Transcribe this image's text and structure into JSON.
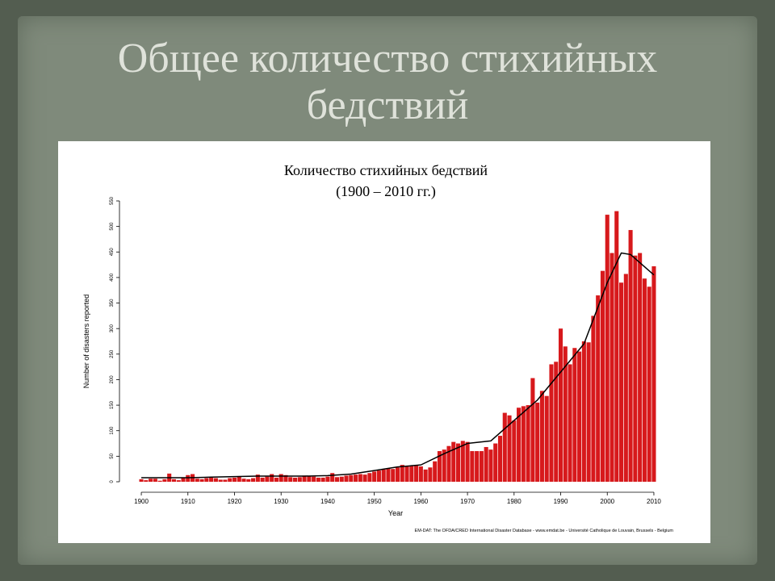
{
  "slide": {
    "title": "Общее количество стихийных бедствий"
  },
  "chart_data": {
    "type": "bar",
    "title": "Количество стихийных бедствий",
    "subtitle": "(1900 – 2010 гг.)",
    "x_label": "Year",
    "y_label": "Number of disasters reported",
    "source": "EM-DAT: The OFDA/CRED International Disaster Database - www.emdat.be - Université Catholique de Louvain, Brussels - Belgium",
    "color": "#d7191c",
    "x": [
      1900,
      1901,
      1902,
      1903,
      1904,
      1905,
      1906,
      1907,
      1908,
      1909,
      1910,
      1911,
      1912,
      1913,
      1914,
      1915,
      1916,
      1917,
      1918,
      1919,
      1920,
      1921,
      1922,
      1923,
      1924,
      1925,
      1926,
      1927,
      1928,
      1929,
      1930,
      1931,
      1932,
      1933,
      1934,
      1935,
      1936,
      1937,
      1938,
      1939,
      1940,
      1941,
      1942,
      1943,
      1944,
      1945,
      1946,
      1947,
      1948,
      1949,
      1950,
      1951,
      1952,
      1953,
      1954,
      1955,
      1956,
      1957,
      1958,
      1959,
      1960,
      1961,
      1962,
      1963,
      1964,
      1965,
      1966,
      1967,
      1968,
      1969,
      1970,
      1971,
      1972,
      1973,
      1974,
      1975,
      1976,
      1977,
      1978,
      1979,
      1980,
      1981,
      1982,
      1983,
      1984,
      1985,
      1986,
      1987,
      1988,
      1989,
      1990,
      1991,
      1992,
      1993,
      1994,
      1995,
      1996,
      1997,
      1998,
      1999,
      2000,
      2001,
      2002,
      2003,
      2004,
      2005,
      2006,
      2007,
      2008,
      2009,
      2010
    ],
    "values": [
      5,
      3,
      6,
      6,
      2,
      5,
      16,
      5,
      3,
      8,
      13,
      15,
      6,
      5,
      7,
      8,
      7,
      4,
      4,
      7,
      8,
      10,
      6,
      5,
      7,
      14,
      8,
      10,
      15,
      8,
      15,
      13,
      9,
      8,
      9,
      12,
      11,
      10,
      8,
      8,
      10,
      17,
      9,
      10,
      12,
      13,
      14,
      15,
      14,
      17,
      20,
      22,
      24,
      26,
      25,
      28,
      33,
      30,
      31,
      32,
      30,
      24,
      28,
      40,
      60,
      63,
      70,
      78,
      75,
      80,
      78,
      60,
      60,
      60,
      68,
      63,
      75,
      90,
      135,
      130,
      120,
      145,
      148,
      150,
      203,
      155,
      178,
      168,
      230,
      235,
      300,
      265,
      230,
      262,
      255,
      275,
      273,
      325,
      365,
      413,
      523,
      448,
      530,
      390,
      407,
      493,
      443,
      448,
      398,
      382,
      422
    ],
    "trend": {
      "color": "#000000",
      "x": [
        1900,
        1905,
        1910,
        1915,
        1920,
        1925,
        1930,
        1935,
        1940,
        1945,
        1950,
        1955,
        1960,
        1965,
        1970,
        1975,
        1980,
        1985,
        1990,
        1995,
        2000,
        2003,
        2005,
        2010
      ],
      "values": [
        8,
        8,
        8,
        9,
        10,
        11,
        11,
        11,
        12,
        15,
        22,
        29,
        33,
        55,
        75,
        80,
        120,
        160,
        215,
        270,
        390,
        448,
        445,
        405
      ]
    },
    "xlim": [
      1898,
      2012
    ],
    "ylim": [
      0,
      550
    ],
    "xticks": [
      1900,
      1910,
      1920,
      1930,
      1940,
      1950,
      1960,
      1970,
      1980,
      1990,
      2000,
      2010
    ],
    "yticks": [
      0,
      50,
      100,
      150,
      200,
      250,
      300,
      350,
      400,
      450,
      500,
      550
    ]
  }
}
